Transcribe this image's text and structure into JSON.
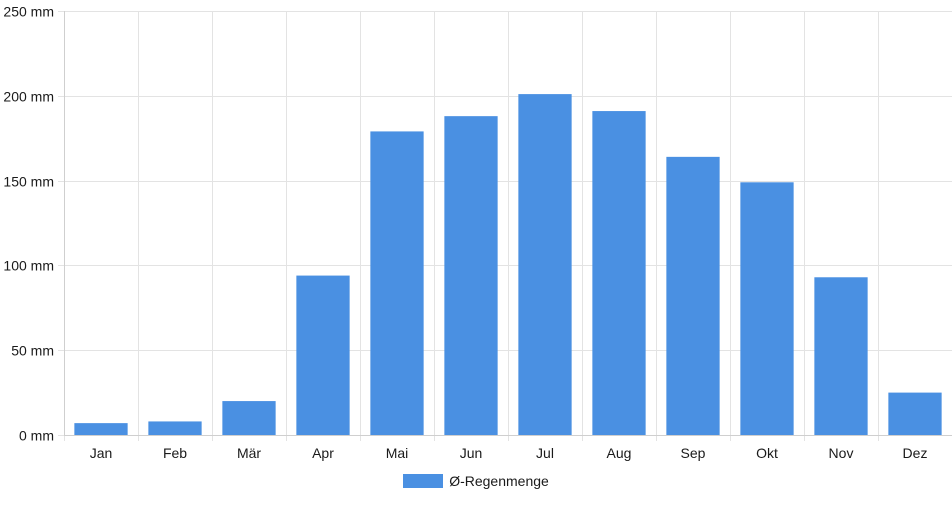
{
  "chart_data": {
    "type": "bar",
    "categories": [
      "Jan",
      "Feb",
      "Mär",
      "Apr",
      "Mai",
      "Jun",
      "Jul",
      "Aug",
      "Sep",
      "Okt",
      "Nov",
      "Dez"
    ],
    "series": [
      {
        "name": "Ø-Regenmenge",
        "values": [
          7,
          8,
          20,
          94,
          179,
          188,
          201,
          191,
          164,
          149,
          93,
          25
        ],
        "color": "#4a90e2"
      }
    ],
    "y_unit": "mm",
    "ylim": [
      0,
      250
    ],
    "y_ticks": [
      0,
      50,
      100,
      150,
      200,
      250
    ],
    "y_tick_labels": [
      "0 mm",
      "50 mm",
      "100 mm",
      "150 mm",
      "200 mm",
      "250 mm"
    ],
    "grid": true,
    "legend_position": "bottom"
  }
}
